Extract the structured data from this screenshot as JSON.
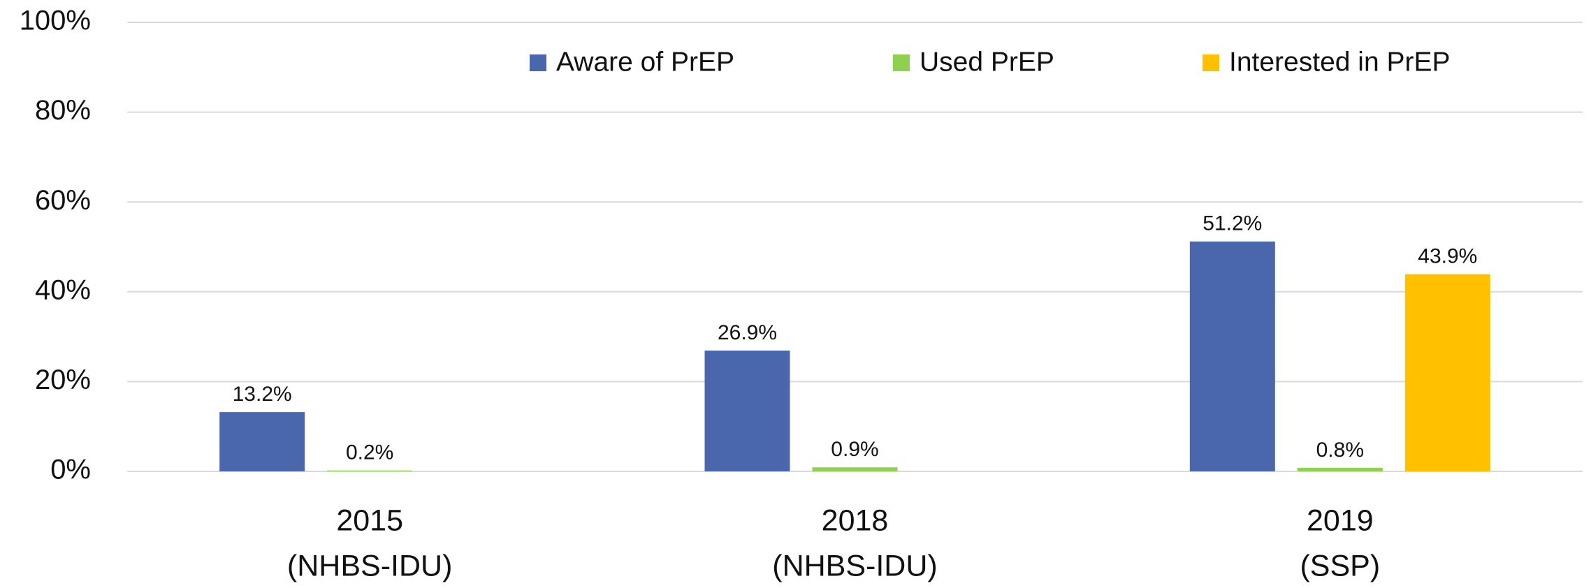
{
  "chart_data": {
    "type": "bar",
    "categories": [
      [
        "2015",
        "(NHBS-IDU)"
      ],
      [
        "2018",
        "(NHBS-IDU)"
      ],
      [
        "2019",
        "(SSP)"
      ]
    ],
    "series": [
      {
        "name": "Aware of PrEP",
        "color": "#4a67ad",
        "values": [
          13.2,
          26.9,
          51.2
        ],
        "value_labels": [
          "13.2%",
          "26.9%",
          "51.2%"
        ]
      },
      {
        "name": "Used PrEP",
        "color": "#8fd14f",
        "values": [
          0.2,
          0.9,
          0.8
        ],
        "value_labels": [
          "0.2%",
          "0.9%",
          "0.8%"
        ]
      },
      {
        "name": "Interested in PrEP",
        "color": "#ffc000",
        "values": [
          null,
          null,
          43.9
        ],
        "value_labels": [
          null,
          null,
          "43.9%"
        ]
      }
    ],
    "ylim": [
      0,
      100
    ],
    "yticks": [
      {
        "value": 0,
        "label": "0%"
      },
      {
        "value": 20,
        "label": "20%"
      },
      {
        "value": 40,
        "label": "40%"
      },
      {
        "value": 60,
        "label": "60%"
      },
      {
        "value": 80,
        "label": "80%"
      },
      {
        "value": 100,
        "label": "100%"
      }
    ],
    "grid": true,
    "legend": "top"
  }
}
